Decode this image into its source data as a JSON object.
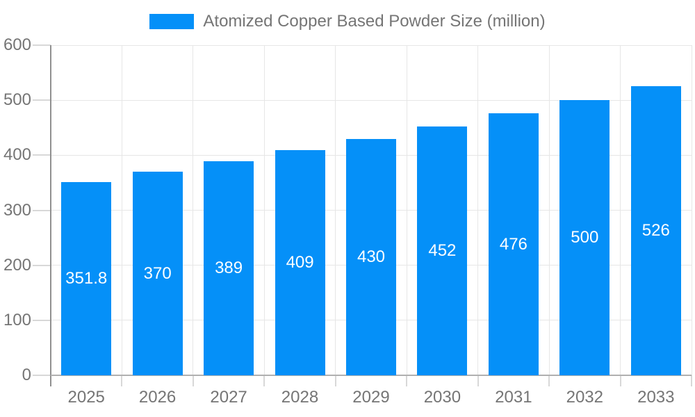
{
  "chart_data": {
    "type": "bar",
    "title": "Atomized Copper Based Powder Size (million)",
    "legend": {
      "label": "Atomized Copper Based Powder Size (million)",
      "position": "top-center"
    },
    "categories": [
      "2025",
      "2026",
      "2027",
      "2028",
      "2029",
      "2030",
      "2031",
      "2032",
      "2033"
    ],
    "series": [
      {
        "name": "Atomized Copper Based Powder Size (million)",
        "values": [
          351.8,
          370,
          389,
          409,
          430,
          452,
          476,
          500,
          526
        ]
      }
    ],
    "value_labels": [
      "351.8",
      "370",
      "389",
      "409",
      "430",
      "452",
      "476",
      "500",
      "526"
    ],
    "xlabel": "",
    "ylabel": "",
    "ylim": [
      0,
      600
    ],
    "yticks": [
      0,
      100,
      200,
      300,
      400,
      500,
      600
    ],
    "grid": "on",
    "colors": {
      "bar": "#0590f8",
      "axis_text": "#757575",
      "value_label_text": "#ffffff",
      "grid_line": "#e6e6e6",
      "tick_line": "#d8d8d8",
      "y_axis_line": "#909090",
      "x_axis_line": "#b0b0b0",
      "background": "#ffffff"
    }
  }
}
